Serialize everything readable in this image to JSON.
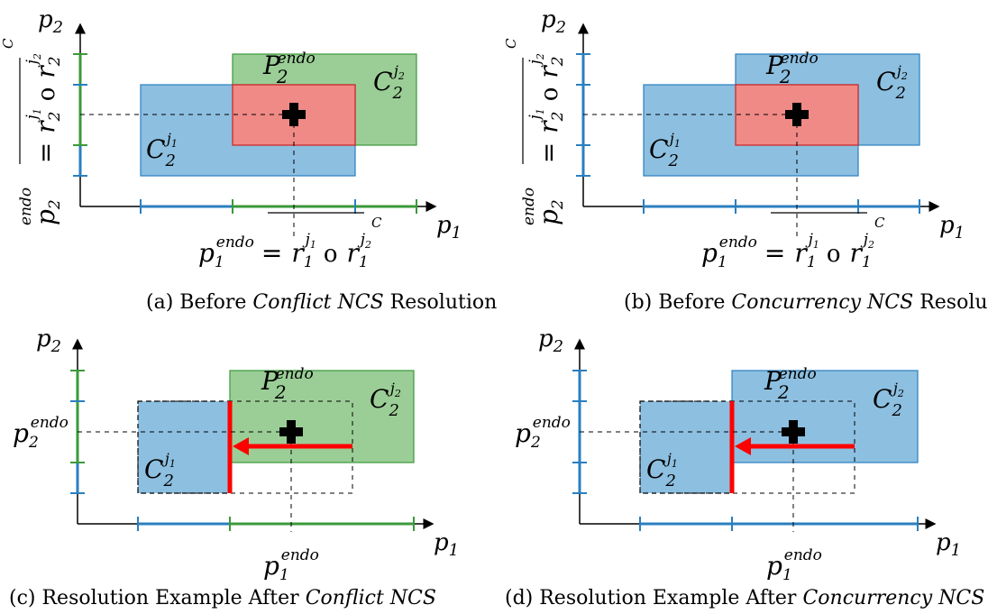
{
  "colors": {
    "blue_fill": "#8dbfe0",
    "blue_stroke": "#2a7fc0",
    "green_fill": "#9bce96",
    "green_stroke": "#3a9a3a",
    "red_fill": "#f08a86",
    "red_stroke": "#d02020",
    "arrow": "#ff0000",
    "dash": "#000000"
  },
  "axes": {
    "x": "p",
    "x_sub": "1",
    "y": "p",
    "y_sub": "2"
  },
  "sets": {
    "cj1": {
      "main": "C",
      "sub": "2",
      "sup": "j",
      "sup_sub": "1"
    },
    "cj2": {
      "main": "C",
      "sub": "2",
      "sup": "j",
      "sup_sub": "2"
    },
    "pendo": {
      "main": "P",
      "sub": "2",
      "sup": "endo"
    }
  },
  "endo_labels": {
    "p1": {
      "main": "p",
      "sub": "1",
      "sup": "endo"
    },
    "p2": {
      "main": "p",
      "sub": "2",
      "sup": "endo"
    }
  },
  "equations": {
    "p1_lhs": "p",
    "p1_lhs_sub": "1",
    "p1_lhs_sup": "endo",
    "p1_eq": "=",
    "r1a": "r",
    "r1a_sub": "1",
    "r1a_sup": "j",
    "r1a_sup_sub": "1",
    "or": "o",
    "r1b": "r",
    "r1b_sub": "1",
    "r1b_sup": "j",
    "r1b_sup_sub": "2",
    "op": "C",
    "p2_lhs": "p",
    "p2_lhs_sub": "2",
    "p2_lhs_sup": "endo",
    "r2a": "r",
    "r2a_sub": "2",
    "r2a_sup": "j",
    "r2a_sup_sub": "1",
    "r2b": "r",
    "r2b_sub": "2",
    "r2b_sup": "j",
    "r2b_sup_sub": "2"
  },
  "captions": {
    "a": {
      "pre": "(a) Before ",
      "em": "Conflict NCS",
      "post": " Resolution"
    },
    "b": {
      "pre": "(b) Before ",
      "em": "Concurrency NCS",
      "post": " Resolution"
    },
    "c": {
      "pre": "(c) Resolution Example After ",
      "em": "Conflict NCS",
      "post": ""
    },
    "d": {
      "pre": "(d) Resolution Example After ",
      "em": "Concurrency NCS",
      "post": ""
    }
  }
}
